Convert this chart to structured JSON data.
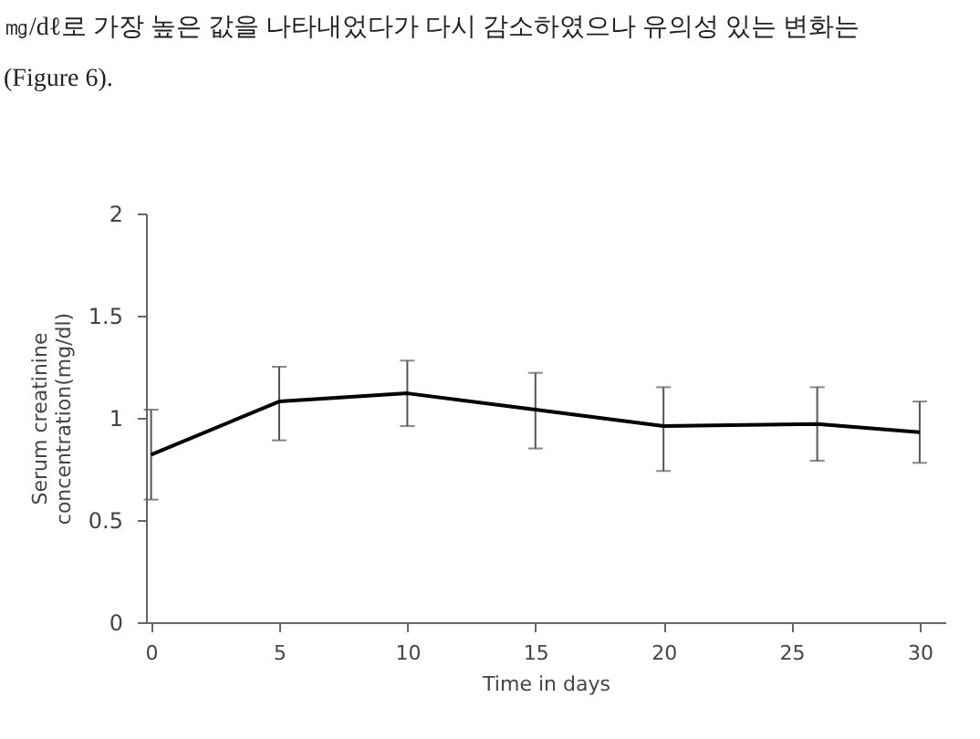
{
  "chart_data": {
    "type": "line",
    "xlabel": "Time in days",
    "ylabel": "Serum creatinine\nconcentration(mg/dl)",
    "annotations": [
      "㎎/dℓ로 가장 높은 값을 나타내었다가 다시 감소하였으나 유의성 있는 변화는",
      "(Figure 6)."
    ],
    "series": [
      {
        "color": "#000000",
        "x": [
          0,
          5,
          10,
          15,
          20,
          26,
          30
        ],
        "values": [
          0.82,
          1.08,
          1.12,
          1.04,
          0.96,
          0.97,
          0.93
        ],
        "errors": [
          [
            0.6,
            1.04
          ],
          [
            0.89,
            1.25
          ],
          [
            0.96,
            1.28
          ],
          [
            0.85,
            1.22
          ],
          [
            0.74,
            1.15
          ],
          [
            0.79,
            1.15
          ],
          [
            0.78,
            1.08
          ]
        ]
      }
    ],
    "xlim": [
      -0.2,
      31
    ],
    "xticks": [
      0,
      5,
      10,
      15,
      20,
      25,
      30
    ],
    "ylim": [
      0,
      2
    ],
    "yticks": [
      0,
      0.5,
      1,
      1.5,
      2
    ],
    "grid": false,
    "marker": "none",
    "line_style": "solid"
  }
}
